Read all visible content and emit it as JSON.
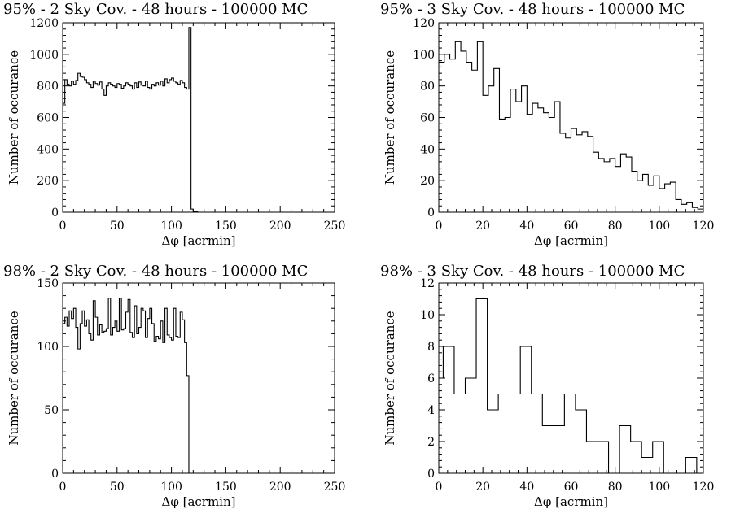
{
  "chart_data": [
    {
      "type": "histogram",
      "title": "95% - 2 Sky Cov. - 48 hours - 100000 MC",
      "xlabel": "Δφ [acrmin]",
      "ylabel": "Number of occurance",
      "xlim": [
        0,
        250
      ],
      "ylim": [
        0,
        1200
      ],
      "xticks": [
        0,
        50,
        100,
        150,
        200,
        250
      ],
      "yticks": [
        0,
        200,
        400,
        600,
        800,
        1000,
        1200
      ],
      "x": [
        0,
        2,
        4,
        6,
        8,
        10,
        12,
        14,
        16,
        18,
        20,
        22,
        24,
        26,
        28,
        30,
        32,
        34,
        36,
        38,
        40,
        42,
        44,
        46,
        48,
        50,
        52,
        54,
        56,
        58,
        60,
        62,
        64,
        66,
        68,
        70,
        72,
        74,
        76,
        78,
        80,
        82,
        84,
        86,
        88,
        90,
        92,
        94,
        96,
        98,
        100,
        102,
        104,
        106,
        108,
        110,
        112,
        114,
        116,
        118,
        120,
        122,
        124
      ],
      "values": [
        690,
        840,
        810,
        800,
        830,
        810,
        835,
        880,
        860,
        855,
        840,
        820,
        810,
        790,
        830,
        815,
        805,
        825,
        780,
        740,
        800,
        820,
        810,
        800,
        790,
        815,
        810,
        785,
        800,
        820,
        810,
        800,
        780,
        820,
        790,
        825,
        805,
        800,
        830,
        790,
        780,
        810,
        800,
        820,
        805,
        830,
        800,
        845,
        820,
        840,
        850,
        830,
        820,
        810,
        835,
        820,
        790,
        780,
        1170,
        20,
        5,
        3,
        0
      ]
    },
    {
      "type": "histogram",
      "title": "95% - 3 Sky Cov. - 48 hours - 100000 MC",
      "xlabel": "Δφ [acrmin]",
      "ylabel": "Number of occurance",
      "xlim": [
        0,
        120
      ],
      "ylim": [
        0,
        120
      ],
      "xticks": [
        0,
        20,
        40,
        60,
        80,
        100,
        120
      ],
      "yticks": [
        0,
        20,
        40,
        60,
        80,
        100,
        120
      ],
      "x": [
        0,
        2.5,
        5,
        7.5,
        10,
        12.5,
        15,
        17.5,
        20,
        22.5,
        25,
        27.5,
        30,
        32.5,
        35,
        37.5,
        40,
        42.5,
        45,
        47.5,
        50,
        52.5,
        55,
        57.5,
        60,
        62.5,
        65,
        67.5,
        70,
        72.5,
        75,
        77.5,
        80,
        82.5,
        85,
        87.5,
        90,
        92.5,
        95,
        97.5,
        100,
        102.5,
        105,
        107.5,
        110,
        112.5,
        115,
        117.5
      ],
      "values": [
        95,
        100,
        97,
        108,
        102,
        95,
        90,
        108,
        74,
        80,
        91,
        59,
        60,
        78,
        70,
        80,
        62,
        69,
        66,
        63,
        60,
        70,
        50,
        47,
        53,
        49,
        51,
        48,
        38,
        34,
        32,
        34,
        29,
        37,
        35,
        26,
        20,
        24,
        17,
        23,
        15,
        18,
        19,
        8,
        5,
        6,
        3,
        2
      ]
    },
    {
      "type": "histogram",
      "title": "98% - 2 Sky Cov. - 48 hours - 100000 MC",
      "xlabel": "Δφ [acrmin]",
      "ylabel": "Number of occurance",
      "xlim": [
        0,
        250
      ],
      "ylim": [
        0,
        150
      ],
      "xticks": [
        0,
        50,
        100,
        150,
        200,
        250
      ],
      "yticks": [
        0,
        50,
        100,
        150
      ],
      "x": [
        0,
        2,
        4,
        6,
        8,
        10,
        12,
        14,
        16,
        18,
        20,
        22,
        24,
        26,
        28,
        30,
        32,
        34,
        36,
        38,
        40,
        42,
        44,
        46,
        48,
        50,
        52,
        54,
        56,
        58,
        60,
        62,
        64,
        66,
        68,
        70,
        72,
        74,
        76,
        78,
        80,
        82,
        84,
        86,
        88,
        90,
        92,
        94,
        96,
        98,
        100,
        102,
        104,
        106,
        108,
        110,
        112,
        114,
        116,
        118,
        120
      ],
      "values": [
        118,
        123,
        116,
        128,
        122,
        130,
        115,
        98,
        118,
        128,
        116,
        121,
        110,
        105,
        136,
        123,
        109,
        117,
        111,
        112,
        114,
        138,
        109,
        115,
        120,
        112,
        138,
        113,
        114,
        127,
        137,
        111,
        107,
        132,
        110,
        115,
        130,
        128,
        107,
        122,
        130,
        118,
        104,
        108,
        106,
        120,
        103,
        130,
        109,
        107,
        105,
        130,
        108,
        107,
        127,
        121,
        103,
        77,
        0,
        0,
        0
      ]
    },
    {
      "type": "histogram",
      "title": "98% - 3 Sky Cov. - 48 hours - 100000 MC",
      "xlabel": "Δφ [acrmin]",
      "ylabel": "Number of occurance",
      "xlim": [
        0,
        120
      ],
      "ylim": [
        0,
        12
      ],
      "xticks": [
        0,
        20,
        40,
        60,
        80,
        100,
        120
      ],
      "yticks": [
        0,
        2,
        4,
        6,
        8,
        10,
        12
      ],
      "x": [
        0,
        2,
        7,
        12,
        17,
        22,
        27,
        32,
        37,
        42,
        47,
        52,
        57,
        62,
        67,
        72,
        77,
        80,
        82,
        87,
        92,
        97,
        102,
        107,
        112,
        117
      ],
      "values": [
        6,
        8,
        5,
        6,
        11,
        4,
        5,
        5,
        8,
        5,
        3,
        3,
        5,
        4,
        2,
        2,
        0,
        0,
        3,
        2,
        1,
        2,
        0,
        0,
        1,
        0
      ]
    }
  ]
}
